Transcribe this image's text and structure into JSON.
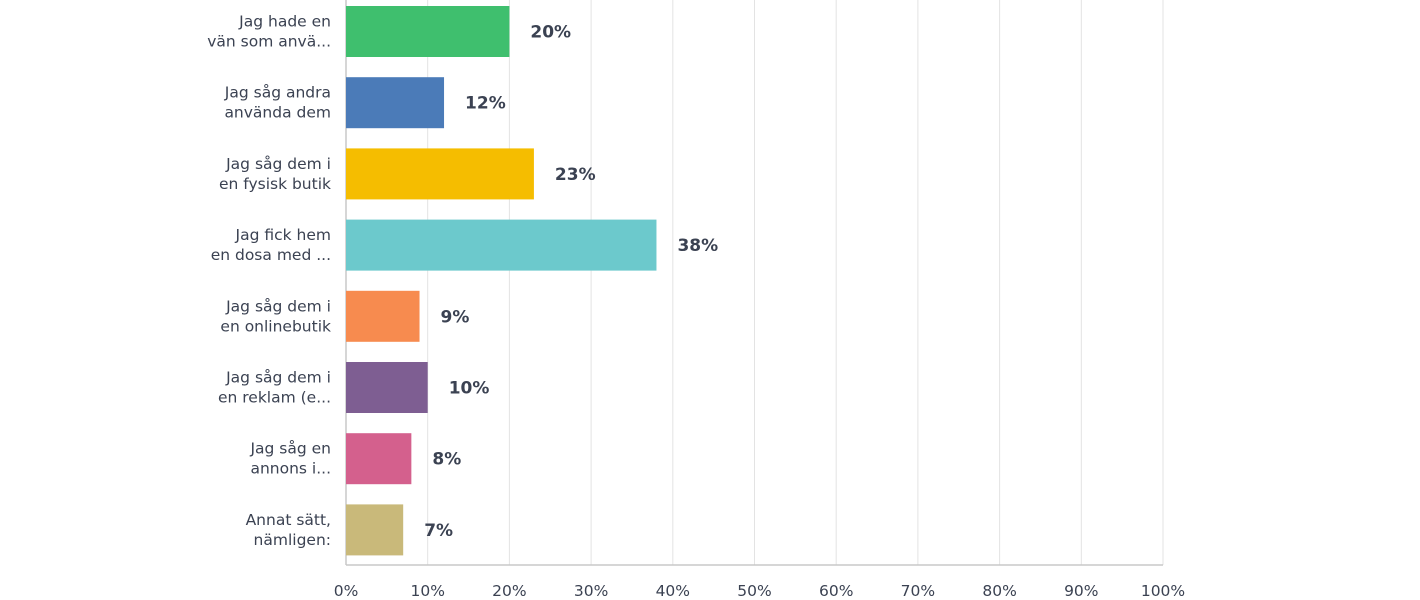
{
  "chart_data": {
    "type": "bar",
    "orientation": "horizontal",
    "categories": [
      [
        "Jag hade en",
        "vän som anvä..."
      ],
      [
        "Jag såg andra",
        "använda dem"
      ],
      [
        "Jag såg dem i",
        "en fysisk butik"
      ],
      [
        "Jag fick hem",
        "en dosa med ..."
      ],
      [
        "Jag såg dem i",
        "en onlinebutik"
      ],
      [
        "Jag såg dem i",
        "en reklam (e..."
      ],
      [
        "Jag såg en",
        "annons i..."
      ],
      [
        "Annat sätt,",
        "nämligen:"
      ]
    ],
    "values": [
      20,
      12,
      23,
      38,
      9,
      10,
      8,
      7
    ],
    "value_labels": [
      "20%",
      "12%",
      "23%",
      "38%",
      "9%",
      "10%",
      "8%",
      "7%"
    ],
    "colors": [
      "#3fbf6e",
      "#4b7bb8",
      "#f5bd00",
      "#6cc9cc",
      "#f78b4f",
      "#7e5e92",
      "#d4608d",
      "#c9b97a"
    ],
    "xlim": [
      0,
      100
    ],
    "ticks": [
      "0%",
      "10%",
      "20%",
      "30%",
      "40%",
      "50%",
      "60%",
      "70%",
      "80%",
      "90%",
      "100%"
    ],
    "grid": true
  }
}
